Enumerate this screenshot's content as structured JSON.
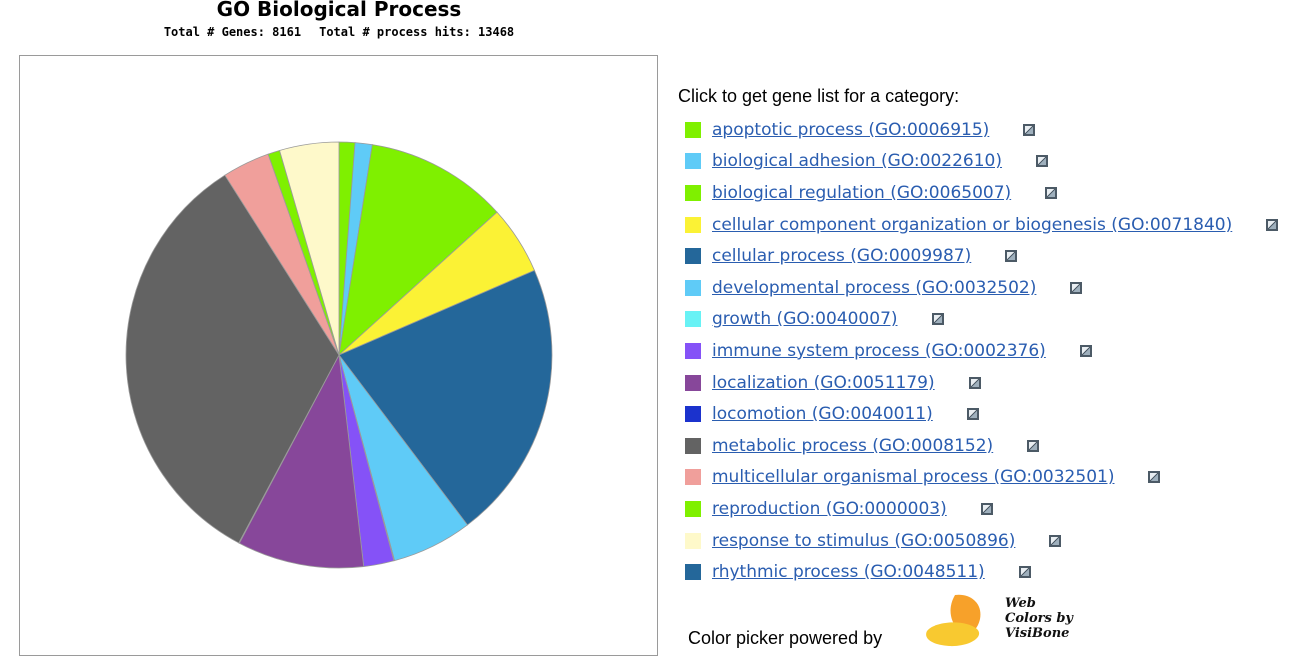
{
  "header": {
    "title": "GO Biological Process",
    "genes_label": "Total # Genes: 8161",
    "hits_label": "Total # process hits: 13468"
  },
  "legend": {
    "heading": "Click to get gene list for a category:",
    "items": [
      {
        "label": "apoptotic process (GO:0006915)",
        "color": "#7ff000"
      },
      {
        "label": "biological adhesion (GO:0022610)",
        "color": "#5fcbf7"
      },
      {
        "label": "biological regulation (GO:0065007)",
        "color": "#7ff000"
      },
      {
        "label": "cellular component organization or biogenesis (GO:0071840)",
        "color": "#fbf235"
      },
      {
        "label": "cellular process (GO:0009987)",
        "color": "#24679a"
      },
      {
        "label": "developmental process (GO:0032502)",
        "color": "#5fcbf7"
      },
      {
        "label": "growth (GO:0040007)",
        "color": "#68f2f5"
      },
      {
        "label": "immune system process (GO:0002376)",
        "color": "#8552f7"
      },
      {
        "label": "localization (GO:0051179)",
        "color": "#87479a"
      },
      {
        "label": "locomotion (GO:0040011)",
        "color": "#1b32cd"
      },
      {
        "label": "metabolic process (GO:0008152)",
        "color": "#636363"
      },
      {
        "label": "multicellular organismal process (GO:0032501)",
        "color": "#f09f9b"
      },
      {
        "label": "reproduction (GO:0000003)",
        "color": "#7ff000"
      },
      {
        "label": "response to stimulus (GO:0050896)",
        "color": "#fef9ca"
      },
      {
        "label": "rhythmic process (GO:0048511)",
        "color": "#24679a"
      }
    ],
    "icon": "chart-icon"
  },
  "footer": {
    "text": "Color picker powered by",
    "logo": {
      "line1": "Web",
      "line2": "Colors by",
      "line3": "VisiBone"
    }
  },
  "chart_data": {
    "type": "pie",
    "title": "GO Biological Process",
    "subtitle": "Total # Genes: 8161    Total # process hits: 13468",
    "start_angle_deg": 0,
    "direction": "clockwise",
    "slices": [
      {
        "label": "apoptotic process (GO:0006915)",
        "percent": 1.2,
        "color": "#7ff000"
      },
      {
        "label": "biological adhesion (GO:0022610)",
        "percent": 1.3,
        "color": "#5fcbf7"
      },
      {
        "label": "biological regulation (GO:0065007)",
        "percent": 10.8,
        "color": "#7ff000"
      },
      {
        "label": "cellular component organization or biogenesis (GO:0071840)",
        "percent": 5.2,
        "color": "#fbf235"
      },
      {
        "label": "cellular process (GO:0009987)",
        "percent": 21.2,
        "color": "#24679a"
      },
      {
        "label": "developmental process (GO:0032502)",
        "percent": 6.1,
        "color": "#5fcbf7"
      },
      {
        "label": "growth (GO:0040007)",
        "percent": 0.05,
        "color": "#68f2f5"
      },
      {
        "label": "immune system process (GO:0002376)",
        "percent": 2.3,
        "color": "#8552f7"
      },
      {
        "label": "localization (GO:0051179)",
        "percent": 9.6,
        "color": "#87479a"
      },
      {
        "label": "locomotion (GO:0040011)",
        "percent": 0.05,
        "color": "#1b32cd"
      },
      {
        "label": "metabolic process (GO:0008152)",
        "percent": 33.2,
        "color": "#636363"
      },
      {
        "label": "multicellular organismal process (GO:0032501)",
        "percent": 3.6,
        "color": "#f09f9b"
      },
      {
        "label": "reproduction (GO:0000003)",
        "percent": 0.9,
        "color": "#7ff000"
      },
      {
        "label": "response to stimulus (GO:0050896)",
        "percent": 4.5,
        "color": "#fef9ca"
      },
      {
        "label": "rhythmic process (GO:0048511)",
        "percent": 0.0,
        "color": "#24679a"
      }
    ]
  }
}
